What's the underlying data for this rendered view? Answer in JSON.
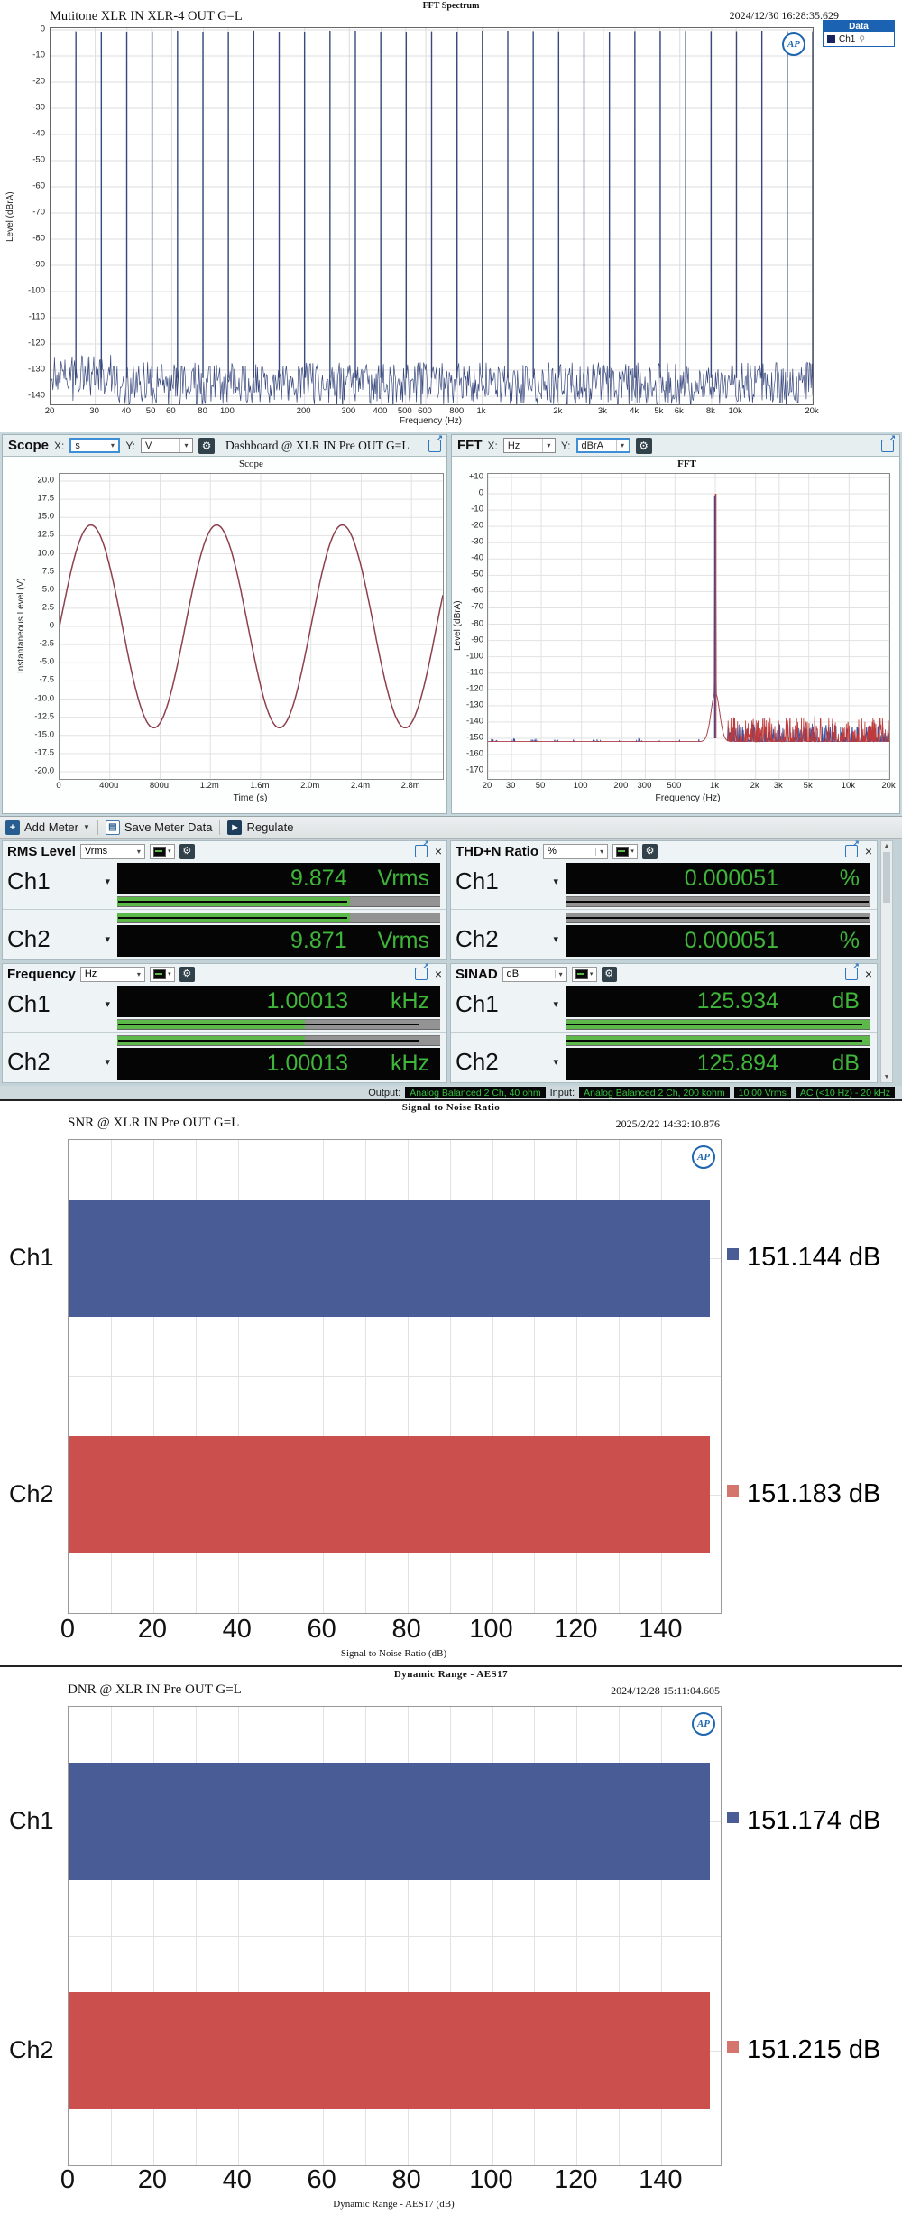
{
  "top_panel": {
    "legend": {
      "header": "Data",
      "entries": [
        {
          "label": "Ch1",
          "color": "#16255f"
        }
      ]
    }
  },
  "dashboard": {
    "scope": {
      "panel_title": "Scope",
      "x_label": "X:",
      "x_value": "s",
      "y_label": "Y:",
      "y_value": "V",
      "context": "Dashboard @ XLR IN Pre OUT G=L"
    },
    "fft": {
      "panel_title": "FFT",
      "x_label": "X:",
      "x_value": "Hz",
      "y_label": "Y:",
      "y_value": "dBrA"
    }
  },
  "meter_toolbar": {
    "add_meter": "Add Meter",
    "save_meter_data": "Save Meter Data",
    "regulate": "Regulate"
  },
  "meters": [
    {
      "title": "RMS Level",
      "unit": "Vrms",
      "rows": [
        {
          "ch": "Ch1",
          "value": "9.874",
          "unit": "Vrms",
          "fill": 0.72,
          "line": 0.71
        },
        {
          "ch": "Ch2",
          "value": "9.871",
          "unit": "Vrms",
          "fill": 0.72,
          "line": 0.71
        }
      ]
    },
    {
      "title": "THD+N Ratio",
      "unit": "%",
      "rows": [
        {
          "ch": "Ch1",
          "value": "0.000051",
          "unit": "%",
          "fill": 0,
          "line": 0.99
        },
        {
          "ch": "Ch2",
          "value": "0.000051",
          "unit": "%",
          "fill": 0,
          "line": 0.99
        }
      ]
    },
    {
      "title": "Frequency",
      "unit": "Hz",
      "rows": [
        {
          "ch": "Ch1",
          "value": "1.00013",
          "unit": "kHz",
          "fill": 0.58,
          "line": 0.93
        },
        {
          "ch": "Ch2",
          "value": "1.00013",
          "unit": "kHz",
          "fill": 0.58,
          "line": 0.93
        }
      ]
    },
    {
      "title": "SINAD",
      "unit": "dB",
      "rows": [
        {
          "ch": "Ch1",
          "value": "125.934",
          "unit": "dB",
          "fill": 1,
          "line": 0.97
        },
        {
          "ch": "Ch2",
          "value": "125.894",
          "unit": "dB",
          "fill": 1,
          "line": 0.97
        }
      ]
    }
  ],
  "status_bar": {
    "output_label": "Output:",
    "output_value": "Analog Balanced 2 Ch, 40 ohm",
    "input_label": "Input:",
    "input_values": [
      "Analog Balanced 2 Ch, 200 kohm",
      "10.00 Vrms",
      "AC (<10 Hz) - 20 kHz"
    ]
  },
  "chart_data": [
    {
      "id": "multitone_fft",
      "type": "line",
      "subtype": "fft-spectrum",
      "window_title": "FFT Spectrum",
      "title": "Mutitone XLR IN XLR-4 OUT G=L",
      "timestamp": "2024/12/30 16:28:35.629",
      "xlabel": "Frequency (Hz)",
      "ylabel": "Level (dBrA)",
      "x_scale": "log",
      "xlim": [
        20,
        20000
      ],
      "ylim_db": [
        -148,
        0
      ],
      "ytick_labels": [
        "0",
        "-10",
        "-20",
        "-30",
        "-40",
        "-50",
        "-60",
        "-70",
        "-80",
        "-90",
        "-100",
        "-110",
        "-120",
        "-130",
        "-140"
      ],
      "xtick_values": [
        20,
        30,
        40,
        50,
        60,
        80,
        100,
        200,
        300,
        400,
        500,
        600,
        800,
        1000,
        2000,
        3000,
        4000,
        5000,
        6000,
        8000,
        10000,
        20000
      ],
      "xtick_labels": [
        "20",
        "30",
        "40",
        "50",
        "60",
        "80",
        "100",
        "200",
        "300",
        "400",
        "500",
        "600",
        "800",
        "1k",
        "2k",
        "3k",
        "4k",
        "5k",
        "6k",
        "8k",
        "10k",
        "20k"
      ],
      "series": [
        {
          "name": "Ch1",
          "color": "#39497e",
          "tones": {
            "f_start_hz": 20,
            "tones_per_decade": 10,
            "count": 31,
            "level_db": 0
          },
          "noise_floor_db": -135
        }
      ],
      "legend": [
        "Ch1"
      ],
      "grid": true
    },
    {
      "id": "scope",
      "type": "line",
      "subtype": "oscilloscope",
      "title": "Scope",
      "xlabel": "Time (s)",
      "ylabel": "Instantaneous Level (V)",
      "xlim_ms": [
        0,
        3.05
      ],
      "ylim_v": [
        -20,
        20
      ],
      "ytick_labels": [
        "20.0",
        "17.5",
        "15.0",
        "12.5",
        "10.0",
        "7.5",
        "5.0",
        "2.5",
        "0",
        "-2.5",
        "-5.0",
        "-7.5",
        "-10.0",
        "-12.5",
        "-15.0",
        "-17.5",
        "-20.0"
      ],
      "xtick_ms": [
        0,
        0.4,
        0.8,
        1.2,
        1.6,
        2.0,
        2.4,
        2.8
      ],
      "xtick_labels": [
        "0",
        "400u",
        "800u",
        "1.2m",
        "1.6m",
        "2.0m",
        "2.4m",
        "2.8m"
      ],
      "series": [
        {
          "name": "Ch1",
          "color": "#8e3f4d",
          "waveform": "sine",
          "frequency_hz": 1000,
          "amplitude_v": 13.96,
          "rms_v": 9.874
        }
      ],
      "grid": true
    },
    {
      "id": "dashboard_fft",
      "type": "line",
      "subtype": "fft",
      "title": "FFT",
      "xlabel": "Frequency (Hz)",
      "ylabel": "Level (dBrA)",
      "x_scale": "log",
      "xlim": [
        20,
        20000
      ],
      "ylim_db": [
        -170,
        10
      ],
      "ytick_labels": [
        "+10",
        "0",
        "-10",
        "-20",
        "-30",
        "-40",
        "-50",
        "-60",
        "-70",
        "-80",
        "-90",
        "-100",
        "-110",
        "-120",
        "-130",
        "-140",
        "-150",
        "-160",
        "-170"
      ],
      "xtick_values": [
        20,
        30,
        50,
        100,
        200,
        300,
        500,
        1000,
        2000,
        3000,
        5000,
        10000,
        20000
      ],
      "xtick_labels": [
        "20",
        "30",
        "50",
        "100",
        "200",
        "300",
        "500",
        "1k",
        "2k",
        "3k",
        "5k",
        "10k",
        "20k"
      ],
      "series": [
        {
          "name": "Ch1",
          "color": "#3a4f9e",
          "peak_hz": 1000,
          "peak_db": 0,
          "noise_floor_db": -152
        },
        {
          "name": "Ch2",
          "color": "#bf3a3a",
          "peak_hz": 1000,
          "peak_db": 0,
          "noise_floor_db": -156
        }
      ],
      "grid": true
    },
    {
      "id": "snr",
      "type": "bar",
      "orientation": "horizontal",
      "window_title": "Signal to Noise Ratio",
      "title": "SNR @ XLR IN Pre OUT G=L",
      "timestamp": "2025/2/22 14:32:10.876",
      "categories": [
        "Ch1",
        "Ch2"
      ],
      "values": [
        151.144,
        151.183
      ],
      "value_labels": [
        "151.144  dB",
        "151.183  dB"
      ],
      "bar_colors": [
        "#4a5c96",
        "#cb4f4c"
      ],
      "marker_colors": [
        "#4a5c96",
        "#d4766e"
      ],
      "xlabel": "Signal to Noise Ratio (dB)",
      "xlim": [
        0,
        154
      ],
      "xticks": [
        0,
        20,
        40,
        60,
        80,
        100,
        120,
        140
      ],
      "grid_step": 10
    },
    {
      "id": "dnr",
      "type": "bar",
      "orientation": "horizontal",
      "window_title": "Dynamic Range - AES17",
      "title": "DNR @ XLR IN Pre OUT G=L",
      "timestamp": "2024/12/28 15:11:04.605",
      "categories": [
        "Ch1",
        "Ch2"
      ],
      "values": [
        151.174,
        151.215
      ],
      "value_labels": [
        "151.174  dB",
        "151.215  dB"
      ],
      "bar_colors": [
        "#4a5c96",
        "#cb4f4c"
      ],
      "marker_colors": [
        "#4a5c96",
        "#d4766e"
      ],
      "xlabel": "Dynamic Range - AES17 (dB)",
      "xlim": [
        0,
        154
      ],
      "xticks": [
        0,
        20,
        40,
        60,
        80,
        100,
        120,
        140
      ],
      "grid_step": 10
    }
  ]
}
